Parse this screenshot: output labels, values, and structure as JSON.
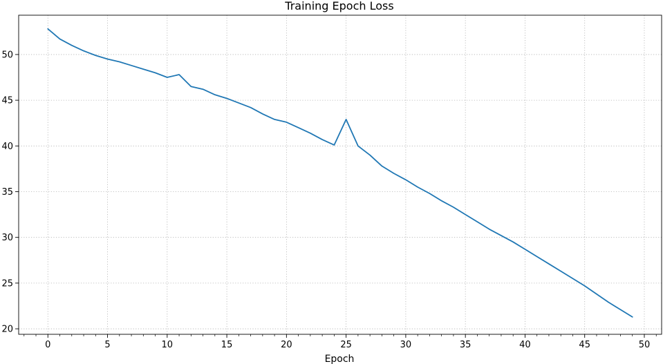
{
  "chart_data": {
    "type": "line",
    "title": "Training Epoch Loss",
    "xlabel": "Epoch",
    "ylabel": "",
    "xlim": [
      -2.45,
      51.45
    ],
    "ylim": [
      19.4,
      54.3
    ],
    "xticks": [
      0,
      5,
      10,
      15,
      20,
      25,
      30,
      35,
      40,
      45,
      50
    ],
    "yticks": [
      20,
      25,
      30,
      35,
      40,
      45,
      50
    ],
    "x_minor_step": 1,
    "grid": true,
    "series": [
      {
        "color": "#1f77b4",
        "x": [
          0,
          1,
          2,
          3,
          4,
          5,
          6,
          7,
          8,
          9,
          10,
          11,
          12,
          13,
          14,
          15,
          16,
          17,
          18,
          19,
          20,
          21,
          22,
          23,
          24,
          25,
          26,
          27,
          28,
          29,
          30,
          31,
          32,
          33,
          34,
          35,
          36,
          37,
          38,
          39,
          40,
          41,
          42,
          43,
          44,
          45,
          46,
          47,
          48,
          49
        ],
        "y": [
          52.8,
          51.7,
          51.0,
          50.4,
          49.9,
          49.5,
          49.2,
          48.8,
          48.4,
          48.0,
          47.5,
          47.8,
          46.5,
          46.2,
          45.6,
          45.2,
          44.7,
          44.2,
          43.5,
          42.9,
          42.6,
          42.0,
          41.4,
          40.7,
          40.1,
          42.9,
          40.0,
          39.0,
          37.8,
          37.0,
          36.3,
          35.5,
          34.8,
          34.0,
          33.3,
          32.5,
          31.7,
          30.9,
          30.2,
          29.5,
          28.7,
          27.9,
          27.1,
          26.3,
          25.5,
          24.7,
          23.8,
          22.9,
          22.1,
          21.3
        ]
      }
    ]
  }
}
